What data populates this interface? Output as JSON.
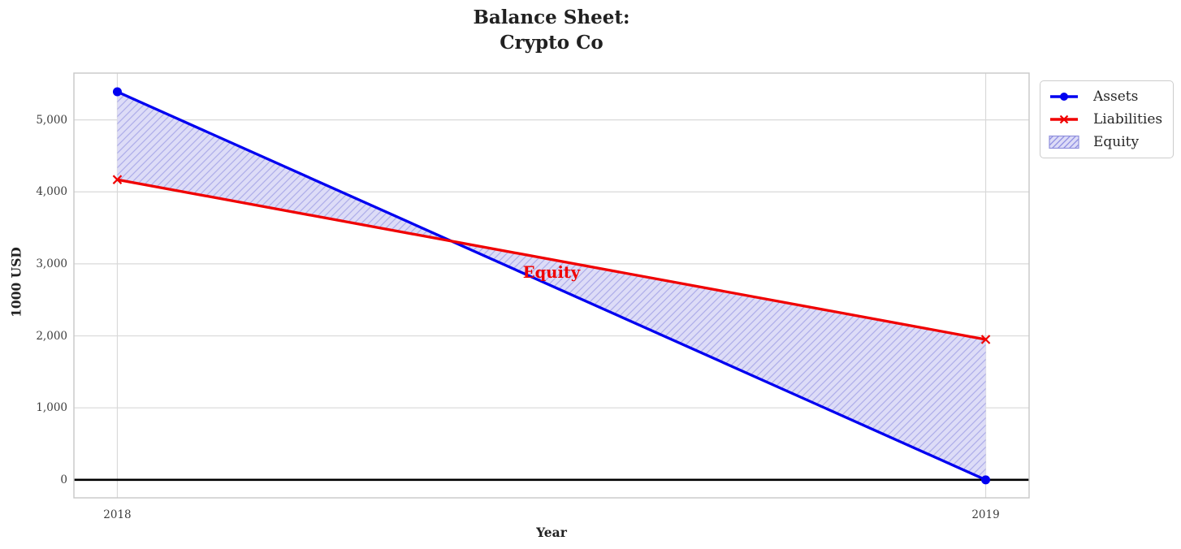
{
  "figure": {
    "title_line1": "Balance Sheet:",
    "title_line2": "Crypto Co"
  },
  "chart_data": {
    "type": "line",
    "title": "Balance Sheet: Crypto Co",
    "xlabel": "Year",
    "ylabel": "1000 USD",
    "x": [
      2018,
      2019
    ],
    "series": [
      {
        "name": "Assets",
        "values": [
          5390,
          0
        ],
        "color": "#0000f0",
        "marker": "circle"
      },
      {
        "name": "Liabilities",
        "values": [
          4170,
          1950
        ],
        "color": "#f00000",
        "marker": "x"
      }
    ],
    "fill_between": {
      "name": "Equity",
      "between": [
        "Assets",
        "Liabilities"
      ],
      "facecolor": "#dddcf7",
      "hatch_color": "#adade9",
      "edge_color": "#9090dd"
    },
    "annotation": {
      "text": "Equity",
      "x": 2018.5,
      "y": 2870,
      "color": "#f00000"
    },
    "xlim": [
      2017.95,
      2019.05
    ],
    "ylim": [
      -250,
      5650
    ],
    "yticks": [
      0,
      1000,
      2000,
      3000,
      4000,
      5000
    ],
    "ytick_labels": [
      "0",
      "1,000",
      "2,000",
      "3,000",
      "4,000",
      "5,000"
    ],
    "xticks": [
      2018,
      2019
    ],
    "xtick_labels": [
      "2018",
      "2019"
    ],
    "zero_line": true,
    "zero_line_color": "#000000",
    "grid": true,
    "grid_color": "#d9d9d9",
    "border_color": "#c8c8c8",
    "legend": [
      "Assets",
      "Liabilities",
      "Equity"
    ],
    "legend_position": "outside-top-right"
  }
}
